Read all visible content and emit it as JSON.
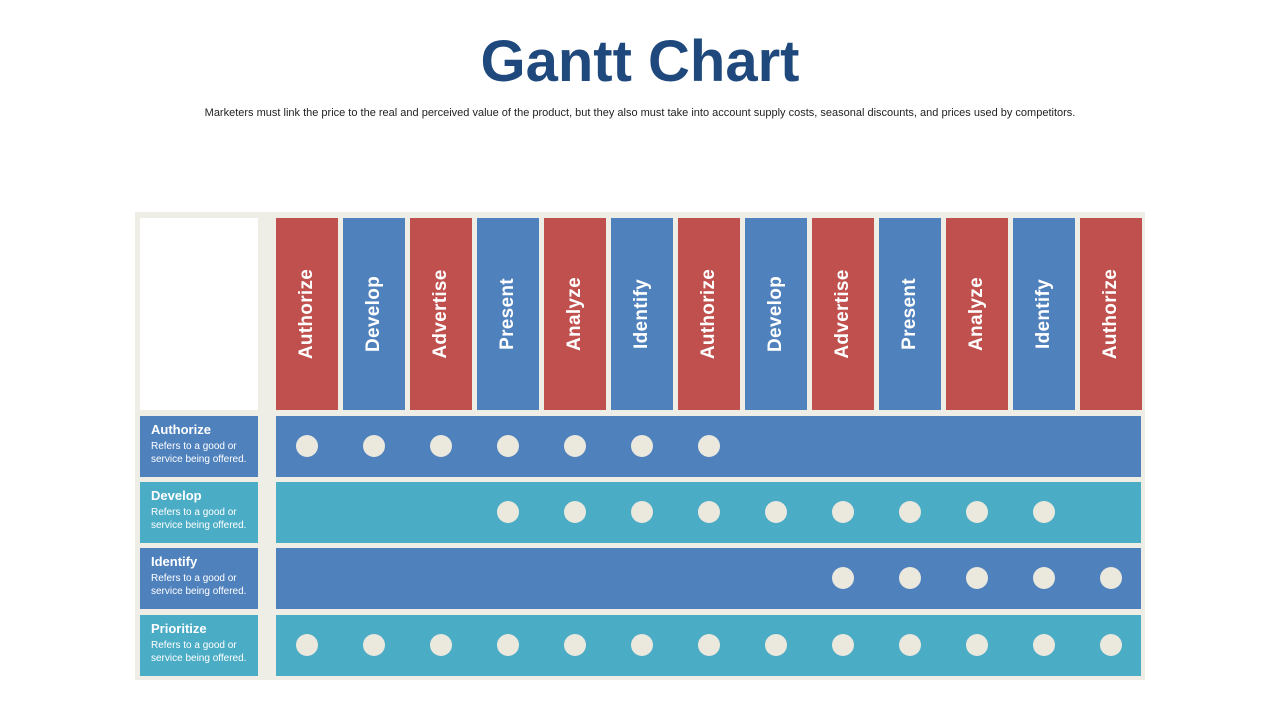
{
  "header": {
    "title": "Gantt Chart",
    "subtitle": "Marketers must link the price to the real and perceived value of the product, but they also must take into account supply costs, seasonal discounts, and prices used by competitors."
  },
  "colors": {
    "title": "#1f497d",
    "red": "#c0504d",
    "blue": "#4f81bd",
    "teal": "#4bacc6",
    "frame": "#eeede6",
    "dot": "#ebe8de"
  },
  "columns": [
    {
      "label": "Authorize",
      "color": "red"
    },
    {
      "label": "Develop",
      "color": "blue"
    },
    {
      "label": "Advertise",
      "color": "red"
    },
    {
      "label": "Present",
      "color": "blue"
    },
    {
      "label": "Analyze",
      "color": "red"
    },
    {
      "label": "Identify",
      "color": "blue"
    },
    {
      "label": "Authorize",
      "color": "red"
    },
    {
      "label": "Develop",
      "color": "blue"
    },
    {
      "label": "Advertise",
      "color": "red"
    },
    {
      "label": "Present",
      "color": "blue"
    },
    {
      "label": "Analyze",
      "color": "red"
    },
    {
      "label": "Identify",
      "color": "blue"
    },
    {
      "label": "Authorize",
      "color": "red"
    }
  ],
  "rows": [
    {
      "title": "Authorize",
      "description": "Refers to a good or service being offered.",
      "color": "blue",
      "active_columns": [
        0,
        1,
        2,
        3,
        4,
        5,
        6
      ]
    },
    {
      "title": "Develop",
      "description": "Refers to a good or service being offered.",
      "color": "teal",
      "active_columns": [
        3,
        4,
        5,
        6,
        7,
        8,
        9,
        10,
        11
      ]
    },
    {
      "title": "Identify",
      "description": "Refers to a good or service being offered.",
      "color": "blue",
      "active_columns": [
        8,
        9,
        10,
        11,
        12
      ]
    },
    {
      "title": "Prioritize",
      "description": "Refers to a good or service being offered.",
      "color": "teal",
      "active_columns": [
        0,
        1,
        2,
        3,
        4,
        5,
        6,
        7,
        8,
        9,
        10,
        11,
        12
      ]
    }
  ]
}
